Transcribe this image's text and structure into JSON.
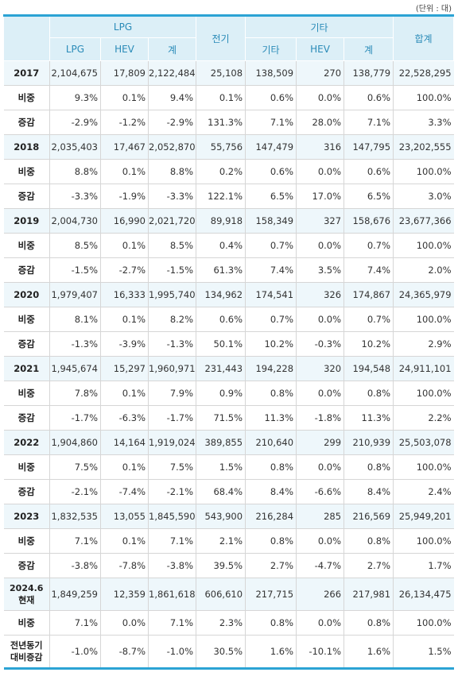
{
  "unit_label": "(단위 : 대)",
  "headers": {
    "lpg_group": "LPG",
    "electric": "전기",
    "other_group": "기타",
    "total": "합계",
    "lpg_sub": [
      "LPG",
      "HEV",
      "계"
    ],
    "other_sub": [
      "기타",
      "HEV",
      "계"
    ]
  },
  "rows": [
    {
      "label": "2017",
      "type": "year",
      "values": [
        "2,104,675",
        "17,809",
        "2,122,484",
        "25,108",
        "138,509",
        "270",
        "138,779",
        "22,528,295"
      ]
    },
    {
      "label": "비중",
      "type": "sub",
      "values": [
        "9.3%",
        "0.1%",
        "9.4%",
        "0.1%",
        "0.6%",
        "0.0%",
        "0.6%",
        "100.0%"
      ]
    },
    {
      "label": "증감",
      "type": "sub",
      "values": [
        "-2.9%",
        "-1.2%",
        "-2.9%",
        "131.3%",
        "7.1%",
        "28.0%",
        "7.1%",
        "3.3%"
      ]
    },
    {
      "label": "2018",
      "type": "year",
      "values": [
        "2,035,403",
        "17,467",
        "2,052,870",
        "55,756",
        "147,479",
        "316",
        "147,795",
        "23,202,555"
      ]
    },
    {
      "label": "비중",
      "type": "sub",
      "values": [
        "8.8%",
        "0.1%",
        "8.8%",
        "0.2%",
        "0.6%",
        "0.0%",
        "0.6%",
        "100.0%"
      ]
    },
    {
      "label": "증감",
      "type": "sub",
      "values": [
        "-3.3%",
        "-1.9%",
        "-3.3%",
        "122.1%",
        "6.5%",
        "17.0%",
        "6.5%",
        "3.0%"
      ]
    },
    {
      "label": "2019",
      "type": "year",
      "values": [
        "2,004,730",
        "16,990",
        "2,021,720",
        "89,918",
        "158,349",
        "327",
        "158,676",
        "23,677,366"
      ]
    },
    {
      "label": "비중",
      "type": "sub",
      "values": [
        "8.5%",
        "0.1%",
        "8.5%",
        "0.4%",
        "0.7%",
        "0.0%",
        "0.7%",
        "100.0%"
      ]
    },
    {
      "label": "증감",
      "type": "sub",
      "values": [
        "-1.5%",
        "-2.7%",
        "-1.5%",
        "61.3%",
        "7.4%",
        "3.5%",
        "7.4%",
        "2.0%"
      ]
    },
    {
      "label": "2020",
      "type": "year",
      "values": [
        "1,979,407",
        "16,333",
        "1,995,740",
        "134,962",
        "174,541",
        "326",
        "174,867",
        "24,365,979"
      ]
    },
    {
      "label": "비중",
      "type": "sub",
      "values": [
        "8.1%",
        "0.1%",
        "8.2%",
        "0.6%",
        "0.7%",
        "0.0%",
        "0.7%",
        "100.0%"
      ]
    },
    {
      "label": "증감",
      "type": "sub",
      "values": [
        "-1.3%",
        "-3.9%",
        "-1.3%",
        "50.1%",
        "10.2%",
        "-0.3%",
        "10.2%",
        "2.9%"
      ]
    },
    {
      "label": "2021",
      "type": "year",
      "values": [
        "1,945,674",
        "15,297",
        "1,960,971",
        "231,443",
        "194,228",
        "320",
        "194,548",
        "24,911,101"
      ]
    },
    {
      "label": "비중",
      "type": "sub",
      "values": [
        "7.8%",
        "0.1%",
        "7.9%",
        "0.9%",
        "0.8%",
        "0.0%",
        "0.8%",
        "100.0%"
      ]
    },
    {
      "label": "증감",
      "type": "sub",
      "values": [
        "-1.7%",
        "-6.3%",
        "-1.7%",
        "71.5%",
        "11.3%",
        "-1.8%",
        "11.3%",
        "2.2%"
      ]
    },
    {
      "label": "2022",
      "type": "year",
      "values": [
        "1,904,860",
        "14,164",
        "1,919,024",
        "389,855",
        "210,640",
        "299",
        "210,939",
        "25,503,078"
      ]
    },
    {
      "label": "비중",
      "type": "sub",
      "values": [
        "7.5%",
        "0.1%",
        "7.5%",
        "1.5%",
        "0.8%",
        "0.0%",
        "0.8%",
        "100.0%"
      ]
    },
    {
      "label": "증감",
      "type": "sub",
      "values": [
        "-2.1%",
        "-7.4%",
        "-2.1%",
        "68.4%",
        "8.4%",
        "-6.6%",
        "8.4%",
        "2.4%"
      ]
    },
    {
      "label": "2023",
      "type": "year",
      "values": [
        "1,832,535",
        "13,055",
        "1,845,590",
        "543,900",
        "216,284",
        "285",
        "216,569",
        "25,949,201"
      ]
    },
    {
      "label": "비중",
      "type": "sub",
      "values": [
        "7.1%",
        "0.1%",
        "7.1%",
        "2.1%",
        "0.8%",
        "0.0%",
        "0.8%",
        "100.0%"
      ]
    },
    {
      "label": "증감",
      "type": "sub",
      "values": [
        "-3.8%",
        "-7.8%",
        "-3.8%",
        "39.5%",
        "2.7%",
        "-4.7%",
        "2.7%",
        "1.7%"
      ]
    },
    {
      "label": "2024.6\n현재",
      "type": "year2",
      "values": [
        "1,849,259",
        "12,359",
        "1,861,618",
        "606,610",
        "217,715",
        "266",
        "217,981",
        "26,134,475"
      ]
    },
    {
      "label": "비중",
      "type": "sub",
      "values": [
        "7.1%",
        "0.0%",
        "7.1%",
        "2.3%",
        "0.8%",
        "0.0%",
        "0.8%",
        "100.0%"
      ]
    },
    {
      "label": "전년동기\n대비증감",
      "type": "sub2",
      "values": [
        "-1.0%",
        "-8.7%",
        "-1.0%",
        "30.5%",
        "1.6%",
        "-10.1%",
        "1.6%",
        "1.5%"
      ]
    }
  ]
}
